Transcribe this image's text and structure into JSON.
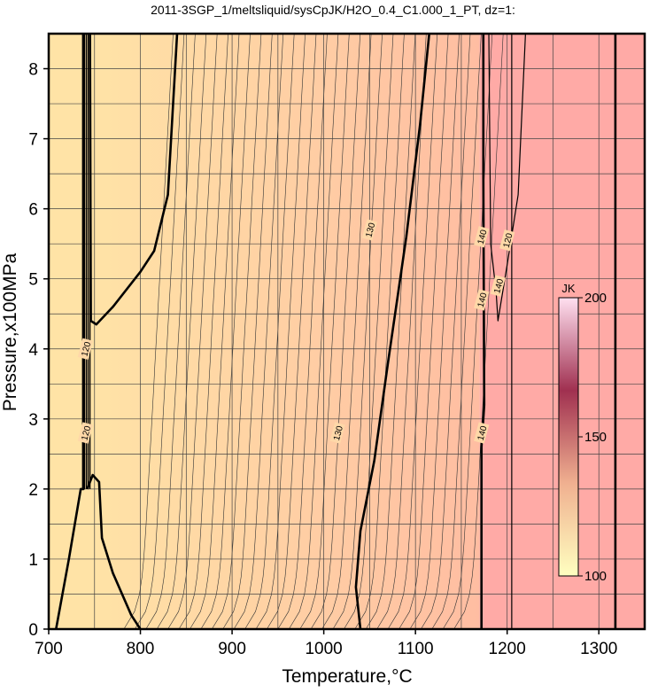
{
  "chart_data": {
    "type": "heatmap",
    "title": "2011-3SGP_1/meltsliquid/sysCpJK/H2O_0.4_C1.000_1_PT, dz=1:",
    "xlabel": "Temperature,°C",
    "ylabel": "Pressure,x100MPa",
    "xlim": [
      700,
      1350
    ],
    "ylim": [
      0,
      8.5
    ],
    "x_ticks": [
      700,
      800,
      900,
      1000,
      1100,
      1200,
      1300
    ],
    "y_ticks": [
      0,
      1,
      2,
      3,
      4,
      5,
      6,
      7,
      8
    ],
    "grid": true,
    "colorbar": {
      "title": "JK",
      "range": [
        100,
        200
      ],
      "ticks": [
        100,
        150,
        200
      ],
      "colors": [
        "#ffffc0",
        "#f0b090",
        "#a03050",
        "#ffe0f0"
      ]
    },
    "background_regions": [
      {
        "x_from": 700,
        "x_to": 750,
        "fill": "#ffe3a6"
      },
      {
        "x_from": 750,
        "x_to": 1170,
        "fill_from": "#ffe3a6",
        "fill_to": "#ffbda2"
      },
      {
        "x_from": 1170,
        "x_to": 1350,
        "fill": "#ffaaa6"
      }
    ],
    "contour_labels": [
      {
        "text": "120",
        "x": 1200.0,
        "y": 5.55
      },
      {
        "text": "120",
        "x": 740,
        "y": 4.0
      },
      {
        "text": "120",
        "x": 740,
        "y": 2.8
      },
      {
        "text": "130",
        "x": 1050,
        "y": 5.7
      },
      {
        "text": "130",
        "x": 1015,
        "y": 2.8
      },
      {
        "text": "140",
        "x": 1172,
        "y": 5.6
      },
      {
        "text": "140",
        "x": 1172,
        "y": 4.7
      },
      {
        "text": "140",
        "x": 1172,
        "y": 2.8
      },
      {
        "text": "140",
        "x": 1190,
        "y": 4.9
      }
    ],
    "contours": [
      {
        "level": 120,
        "bold": true,
        "points": [
          [
            708,
            0
          ],
          [
            722,
            1.0
          ],
          [
            735,
            2.0
          ],
          [
            738,
            2.0
          ],
          [
            738,
            8.5
          ]
        ]
      },
      {
        "level": 120,
        "bold": true,
        "points": [
          [
            745,
            8.5
          ],
          [
            746,
            4.4
          ],
          [
            752,
            4.35
          ],
          [
            770,
            4.6
          ],
          [
            800,
            5.1
          ],
          [
            815,
            5.4
          ],
          [
            830,
            6.2
          ],
          [
            840,
            8.5
          ]
        ]
      },
      {
        "level": 120,
        "bold": true,
        "points": [
          [
            742,
            2.0
          ],
          [
            748,
            2.2
          ],
          [
            755,
            2.1
          ],
          [
            758,
            1.3
          ],
          [
            770,
            0.8
          ],
          [
            790,
            0.2
          ],
          [
            800,
            0
          ]
        ]
      },
      {
        "level": 130,
        "bold": true,
        "points": [
          [
            1040,
            0
          ],
          [
            1035,
            0.6
          ],
          [
            1040,
            1.4
          ],
          [
            1055,
            2.4
          ],
          [
            1070,
            3.8
          ],
          [
            1090,
            5.6
          ],
          [
            1105,
            7.2
          ],
          [
            1115,
            8.5
          ]
        ]
      },
      {
        "level": 140,
        "bold": true,
        "points": [
          [
            1172,
            0
          ],
          [
            1172,
            2.6
          ],
          [
            1175,
            3.2
          ],
          [
            1174,
            6.5
          ],
          [
            1174,
            8.5
          ]
        ]
      },
      {
        "level": 140,
        "bold": false,
        "points": [
          [
            1180,
            8.5
          ],
          [
            1182,
            5.5
          ],
          [
            1188,
            4.8
          ],
          [
            1190,
            4.4
          ],
          [
            1200,
            5.2
          ],
          [
            1212,
            6.2
          ],
          [
            1220,
            8.5
          ]
        ]
      },
      {
        "level": 150,
        "bold": true,
        "points": [
          [
            1318,
            0
          ],
          [
            1318,
            8.5
          ]
        ]
      }
    ]
  }
}
